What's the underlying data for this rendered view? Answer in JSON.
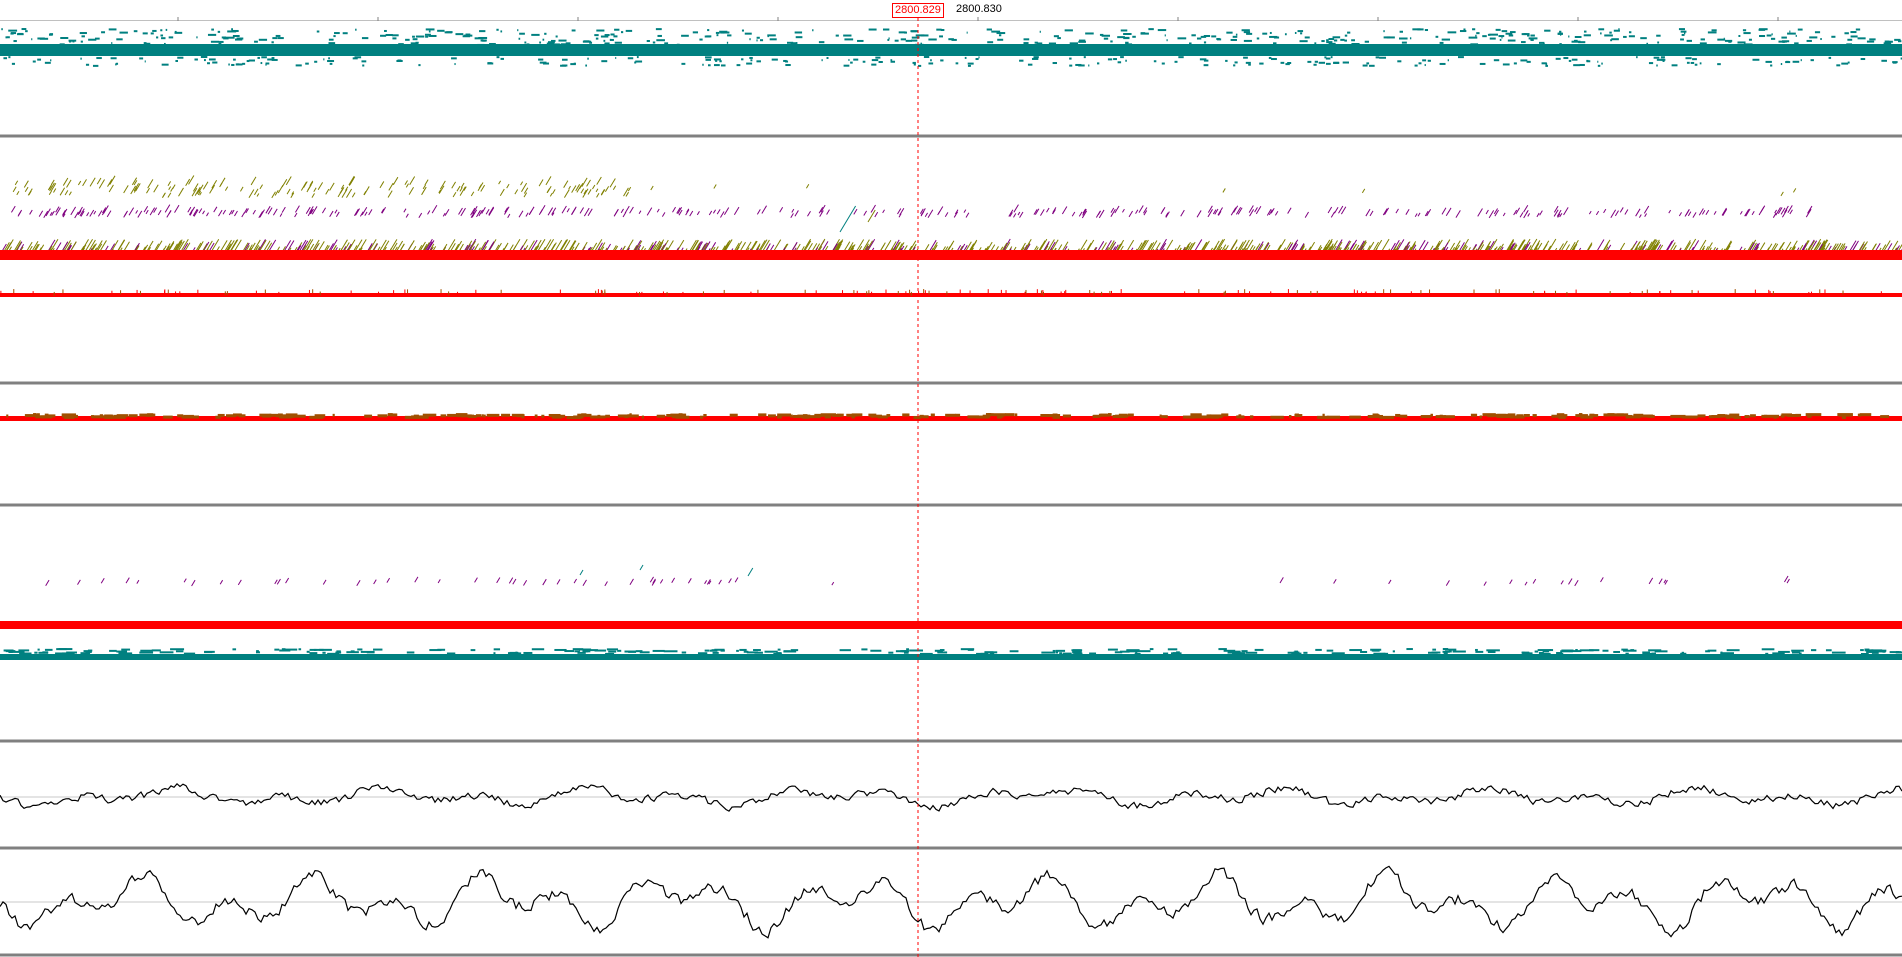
{
  "ruler": {
    "cursor_position": "2800.829",
    "next_position": "2800.830"
  },
  "colors": {
    "cursor_line": "#ff0000",
    "feature_teal": "#008080",
    "feature_olive": "#808000",
    "feature_purple": "#800080",
    "feature_red": "#ff0000",
    "feature_brown": "#a05000",
    "signal_line": "#000000",
    "separator": "#808080",
    "baseline_grid": "#c8c8c8"
  },
  "tracks": [
    {
      "name": "track-1",
      "kind": "coverage",
      "color": "teal"
    },
    {
      "name": "track-2",
      "kind": "alignments",
      "colors": [
        "olive",
        "purple",
        "red"
      ]
    },
    {
      "name": "track-3",
      "kind": "coverage",
      "color": "red"
    },
    {
      "name": "track-4",
      "kind": "coverage",
      "colors": [
        "red",
        "brown"
      ]
    },
    {
      "name": "track-5",
      "kind": "alignments",
      "colors": [
        "purple",
        "teal",
        "red"
      ]
    },
    {
      "name": "track-6",
      "kind": "coverage",
      "color": "teal"
    },
    {
      "name": "track-7",
      "kind": "signal",
      "color": "black"
    },
    {
      "name": "track-8",
      "kind": "signal",
      "color": "black"
    }
  ]
}
